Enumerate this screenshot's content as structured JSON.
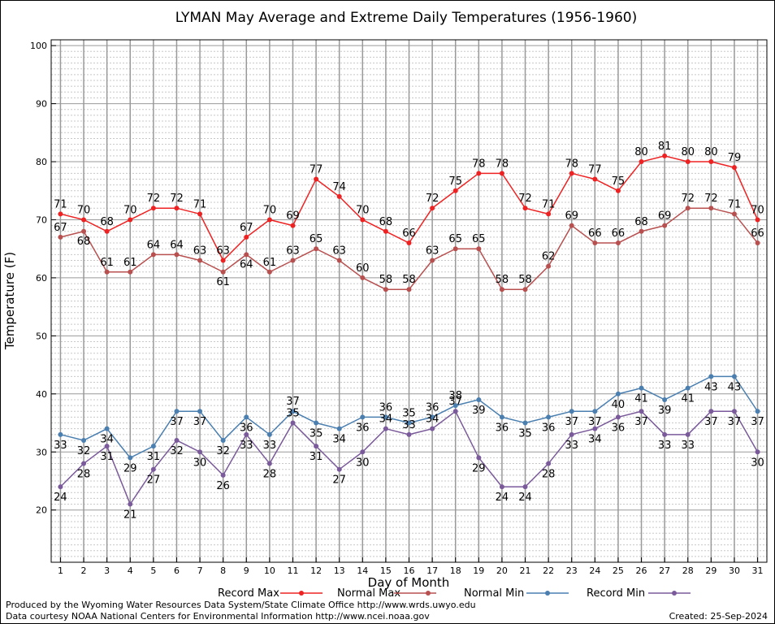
{
  "chart_data": {
    "type": "line",
    "title": "LYMAN May Average and Extreme Daily Temperatures (1956-1960)",
    "xlabel": "Day of Month",
    "ylabel": "Temperature (F)",
    "xlim": [
      0.6,
      31.4
    ],
    "ylim": [
      11,
      101
    ],
    "yticks": [
      20,
      30,
      40,
      50,
      60,
      70,
      80,
      90,
      100
    ],
    "x": [
      1,
      2,
      3,
      4,
      5,
      6,
      7,
      8,
      9,
      10,
      11,
      12,
      13,
      14,
      15,
      16,
      17,
      18,
      19,
      20,
      21,
      22,
      23,
      24,
      25,
      26,
      27,
      28,
      29,
      30,
      31
    ],
    "grid": true,
    "legend_position": "bottom",
    "series": [
      {
        "name": "Record Max",
        "color": "#ee2222",
        "values": [
          71,
          70,
          68,
          70,
          72,
          72,
          71,
          63,
          67,
          70,
          69,
          77,
          74,
          70,
          68,
          66,
          72,
          75,
          78,
          78,
          72,
          71,
          78,
          77,
          75,
          80,
          81,
          80,
          80,
          79,
          70
        ]
      },
      {
        "name": "Normal Max",
        "color": "#b85050",
        "values": [
          67,
          68,
          61,
          61,
          64,
          64,
          63,
          61,
          64,
          61,
          63,
          65,
          63,
          60,
          58,
          58,
          63,
          65,
          65,
          58,
          58,
          62,
          69,
          66,
          66,
          68,
          69,
          72,
          72,
          71,
          66
        ]
      },
      {
        "name": "Normal Min",
        "color": "#4a7fb0",
        "values": [
          33,
          32,
          34,
          29,
          31,
          37,
          37,
          32,
          36,
          33,
          37,
          35,
          34,
          36,
          36,
          35,
          36,
          38,
          39,
          36,
          35,
          36,
          37,
          37,
          40,
          41,
          39,
          41,
          43,
          43,
          37
        ]
      },
      {
        "name": "Record Min",
        "color": "#7a5a9a",
        "values": [
          24,
          28,
          31,
          21,
          27,
          32,
          30,
          26,
          33,
          28,
          35,
          31,
          27,
          30,
          34,
          33,
          34,
          37,
          29,
          24,
          24,
          28,
          33,
          34,
          36,
          37,
          33,
          33,
          37,
          37,
          30
        ]
      }
    ]
  },
  "footer": {
    "produced_by": "Produced by the Wyoming Water Resources Data System/State Climate Office http://www.wrds.uwyo.edu",
    "courtesy": "Data courtesy NOAA National Centers for Environmental Information http://www.ncei.noaa.gov",
    "created": "Created:  25-Sep-2024"
  }
}
